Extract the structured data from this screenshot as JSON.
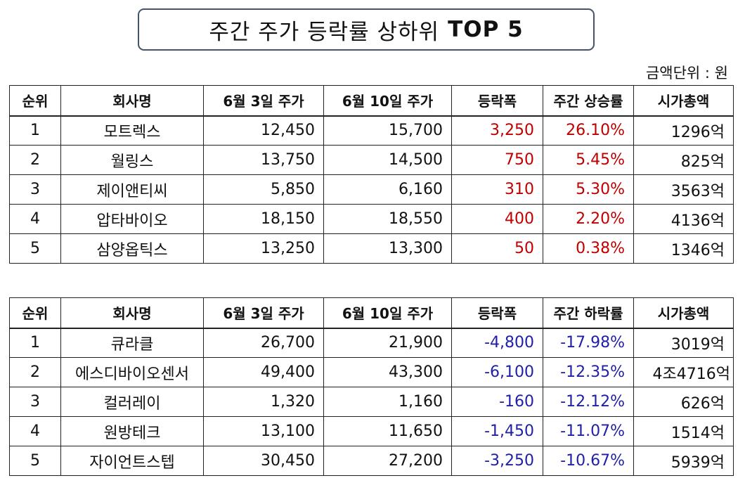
{
  "title": {
    "korean": "주간 주가 등락률 상하위",
    "bold": "TOP 5"
  },
  "unit_label": "금액단위 : 원",
  "gainers": {
    "headers": [
      "순위",
      "회사명",
      "6월 3일 주가",
      "6월 10일 주가",
      "등락폭",
      "주간 상승률",
      "시가총액"
    ],
    "rows": [
      [
        "1",
        "모트렉스",
        "12,450",
        "15,700",
        "3,250",
        "26.10%",
        "1296억"
      ],
      [
        "2",
        "월링스",
        "13,750",
        "14,500",
        "750",
        "5.45%",
        "825억"
      ],
      [
        "3",
        "제이앤티씨",
        "5,850",
        "6,160",
        "310",
        "5.30%",
        "3563억"
      ],
      [
        "4",
        "압타바이오",
        "18,150",
        "18,550",
        "400",
        "2.20%",
        "4136억"
      ],
      [
        "5",
        "삼양옵틱스",
        "13,250",
        "13,300",
        "50",
        "0.38%",
        "1346억"
      ]
    ]
  },
  "losers": {
    "headers": [
      "순위",
      "회사명",
      "6월 3일 주가",
      "6월 10일 주가",
      "등락폭",
      "주간 하락률",
      "시가총액"
    ],
    "rows": [
      [
        "1",
        "큐라클",
        "26,700",
        "21,900",
        "-4,800",
        "-17.98%",
        "3019억"
      ],
      [
        "2",
        "에스디바이오센서",
        "49,400",
        "43,300",
        "-6,100",
        "-12.35%",
        "4조4716억"
      ],
      [
        "3",
        "컬러레이",
        "1,320",
        "1,160",
        "-160",
        "-12.12%",
        "626억"
      ],
      [
        "4",
        "원방테크",
        "13,100",
        "11,650",
        "-1,450",
        "-11.07%",
        "1514억"
      ],
      [
        "5",
        "자이언트스텝",
        "30,450",
        "27,200",
        "-3,250",
        "-10.67%",
        "5939억"
      ]
    ]
  },
  "colors": {
    "up": "#c00000",
    "down": "#1f1fa8",
    "title_border": "#44546a"
  }
}
